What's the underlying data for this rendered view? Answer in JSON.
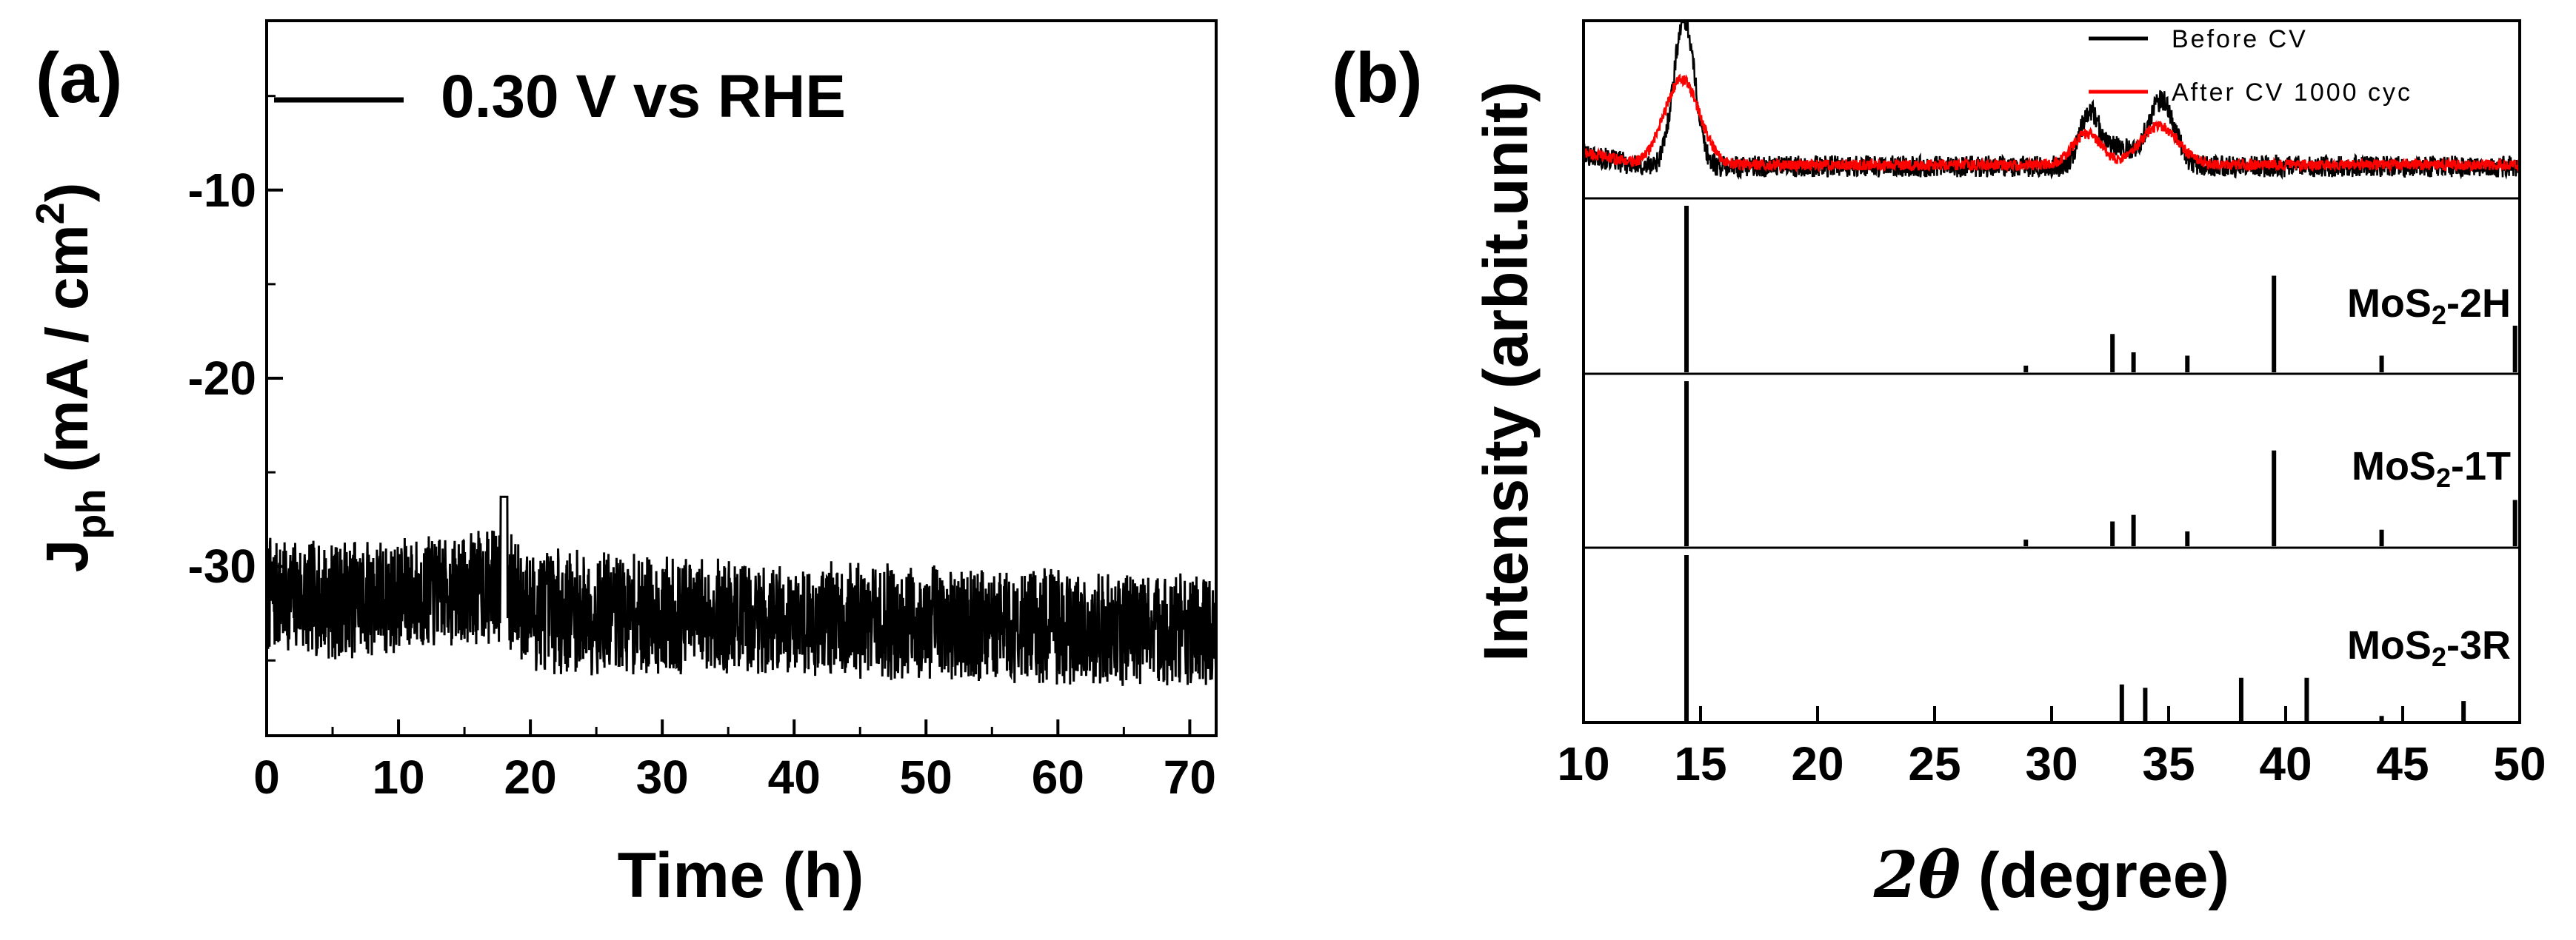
{
  "chart_data": [
    {
      "type": "line",
      "panel_label": "(a)",
      "legend": [
        {
          "label": "0.30 V vs RHE",
          "color": "#000000"
        }
      ],
      "legend_position": "top",
      "xlabel": "Time (h)",
      "ylabel_main": "J",
      "ylabel_sub": "ph",
      "ylabel_rest": " (mA / cm",
      "ylabel_sup": "2",
      "ylabel_close": ")",
      "xlim": [
        0,
        72
      ],
      "ylim": [
        -39,
        -1
      ],
      "xticks": [
        "0",
        "10",
        "20",
        "30",
        "40",
        "50",
        "60",
        "70"
      ],
      "xtick_values": [
        0,
        10,
        20,
        30,
        40,
        50,
        60,
        70
      ],
      "yticks": [
        "-10",
        "-20",
        "-30"
      ],
      "ytick_values": [
        -10,
        -20,
        -30
      ],
      "series": [
        {
          "color": "#000000",
          "envelope": {
            "x": [
              0,
              5,
              10,
              15,
              18,
              20,
              25,
              30,
              35,
              40,
              45,
              50,
              55,
              60,
              65,
              70,
              72
            ],
            "mean": [
              -31.5,
              -31.8,
              -31.6,
              -31.2,
              -31.0,
              -32.3,
              -32.5,
              -32.6,
              -32.7,
              -32.8,
              -32.9,
              -33.0,
              -33.1,
              -33.2,
              -33.3,
              -33.4,
              -33.5
            ],
            "halfwidth": [
              3.2,
              3.2,
              3.1,
              3.0,
              3.2,
              3.4,
              3.3,
              3.2,
              3.2,
              3.2,
              3.1,
              3.1,
              3.1,
              3.1,
              3.1,
              3.0,
              3.0
            ]
          },
          "min": -36.8,
          "max": -26.3
        }
      ]
    },
    {
      "type": "line",
      "panel_label": "(b)",
      "xlabel_symbol": "2θ",
      "xlabel_rest": " (degree)",
      "ylabel": "Intensity (arbit.unit)",
      "xlim": [
        10,
        50
      ],
      "xticks": [
        "10",
        "15",
        "20",
        "25",
        "30",
        "35",
        "40",
        "45",
        "50"
      ],
      "xtick_values": [
        10,
        15,
        20,
        25,
        30,
        35,
        40,
        45,
        50
      ],
      "legend": [
        {
          "label": "Before CV",
          "color": "#000000"
        },
        {
          "label": "After CV 1000 cyc",
          "color": "#ff0000"
        }
      ],
      "legend_position": "top-right",
      "xrd": [
        {
          "name": "Before CV",
          "color": "#000000",
          "peaks": [
            {
              "center": 14.3,
              "height": 0.95,
              "width": 0.45
            },
            {
              "center": 31.6,
              "height": 0.32,
              "width": 0.4
            },
            {
              "center": 34.7,
              "height": 0.42,
              "width": 0.55
            },
            {
              "center": 32.8,
              "height": 0.12,
              "width": 0.8
            }
          ],
          "baseline": 0.12,
          "noise": 0.07
        },
        {
          "name": "After CV 1000 cyc",
          "color": "#ff0000",
          "peaks": [
            {
              "center": 14.2,
              "height": 0.55,
              "width": 0.75
            },
            {
              "center": 31.5,
              "height": 0.2,
              "width": 0.6
            },
            {
              "center": 34.6,
              "height": 0.25,
              "width": 0.8
            }
          ],
          "baseline": 0.13,
          "noise": 0.035
        }
      ],
      "references": [
        {
          "label_pre": "MoS",
          "label_sub": "2",
          "label_post": "-2H",
          "sticks": [
            {
              "x": 14.4,
              "h": 1.0
            },
            {
              "x": 28.9,
              "h": 0.04
            },
            {
              "x": 32.6,
              "h": 0.23
            },
            {
              "x": 33.5,
              "h": 0.12
            },
            {
              "x": 35.8,
              "h": 0.1
            },
            {
              "x": 39.5,
              "h": 0.58
            },
            {
              "x": 44.1,
              "h": 0.1
            },
            {
              "x": 49.8,
              "h": 0.28
            }
          ]
        },
        {
          "label_pre": "MoS",
          "label_sub": "2",
          "label_post": "-1T",
          "sticks": [
            {
              "x": 14.4,
              "h": 1.0
            },
            {
              "x": 28.9,
              "h": 0.04
            },
            {
              "x": 32.6,
              "h": 0.15
            },
            {
              "x": 33.5,
              "h": 0.19
            },
            {
              "x": 35.8,
              "h": 0.09
            },
            {
              "x": 39.5,
              "h": 0.58
            },
            {
              "x": 44.1,
              "h": 0.1
            },
            {
              "x": 49.8,
              "h": 0.28
            }
          ]
        },
        {
          "label_pre": "MoS",
          "label_sub": "2",
          "label_post": "-3R",
          "sticks": [
            {
              "x": 14.4,
              "h": 1.0
            },
            {
              "x": 33.0,
              "h": 0.22
            },
            {
              "x": 34.0,
              "h": 0.2
            },
            {
              "x": 38.1,
              "h": 0.26
            },
            {
              "x": 40.9,
              "h": 0.26
            },
            {
              "x": 44.1,
              "h": 0.03
            },
            {
              "x": 47.6,
              "h": 0.12
            }
          ]
        }
      ]
    }
  ]
}
